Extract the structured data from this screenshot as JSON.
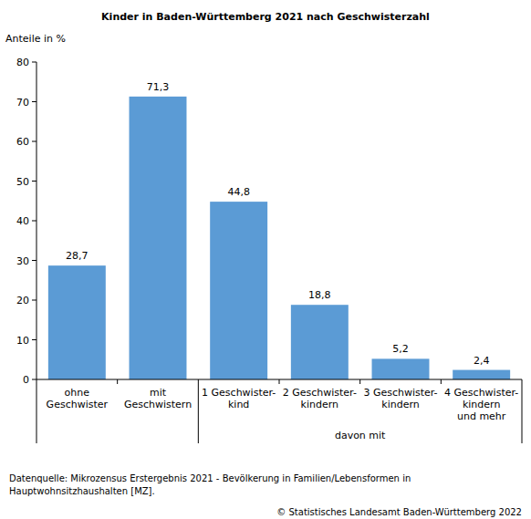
{
  "chart_data": {
    "type": "bar",
    "title": "Kinder in Baden-Württemberg 2021 nach Geschwisterzahl",
    "y_label": "Anteile in %",
    "categories": [
      "ohne\nGeschwister",
      "mit\nGeschwistern",
      "1 Geschwister-\nkind",
      "2 Geschwister-\nkindern",
      "3 Geschwister-\nkindern",
      "4 Geschwister-\nkindern\nund mehr"
    ],
    "values": [
      28.7,
      71.3,
      44.8,
      18.8,
      5.2,
      2.4
    ],
    "value_labels": [
      "28,7",
      "71,3",
      "44,8",
      "18,8",
      "5,2",
      "2,4"
    ],
    "data_labels": true,
    "color": "#5b9bd5",
    "ylim": [
      0,
      80
    ],
    "yticks": [
      0,
      10,
      20,
      30,
      40,
      50,
      60,
      70,
      80
    ],
    "grid": false,
    "groups": [
      {
        "label": "davon mit",
        "from": 2,
        "to": 5
      }
    ],
    "source": "Datenquelle: Mikrozensus Erstergebnis 2021 - Bevölkerung in Familien/Lebensformen in\nHauptwohnsitzhaushalten [MZ].",
    "copyright": "© Statistisches Landesamt Baden-Württemberg 2022"
  }
}
